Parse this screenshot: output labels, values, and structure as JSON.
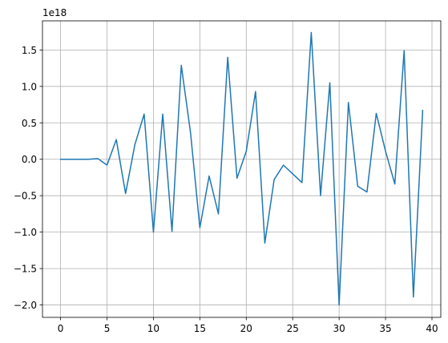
{
  "chart_data": {
    "type": "line",
    "title": "",
    "xlabel": "",
    "ylabel": "",
    "y_offset_label": "1e18",
    "xlim": [
      -1.95,
      40.95
    ],
    "ylim": [
      -2.17,
      1.9
    ],
    "xticks": [
      0,
      5,
      10,
      15,
      20,
      25,
      30,
      35,
      40
    ],
    "xtick_labels": [
      "0",
      "5",
      "10",
      "15",
      "20",
      "25",
      "30",
      "35",
      "40"
    ],
    "yticks": [
      -2.0,
      -1.5,
      -1.0,
      -0.5,
      0.0,
      0.5,
      1.0,
      1.5
    ],
    "ytick_labels": [
      "−2.0",
      "−1.5",
      "−1.0",
      "−0.5",
      "0.0",
      "0.5",
      "1.0",
      "1.5"
    ],
    "grid": true,
    "legend": "none",
    "x": [
      0,
      1,
      2,
      3,
      4,
      5,
      6,
      7,
      8,
      9,
      10,
      11,
      12,
      13,
      14,
      15,
      16,
      17,
      18,
      19,
      20,
      21,
      22,
      23,
      24,
      25,
      26,
      27,
      28,
      29,
      30,
      31,
      32,
      33,
      34,
      35,
      36,
      37,
      38,
      39
    ],
    "series": [
      {
        "color": "#1f77b4",
        "values": [
          0.0,
          0.0,
          0.0,
          0.0,
          0.01,
          -0.08,
          0.27,
          -0.47,
          0.2,
          0.62,
          -1.0,
          0.62,
          -0.99,
          1.29,
          0.36,
          -0.94,
          -0.23,
          -0.75,
          1.4,
          -0.26,
          0.11,
          0.93,
          -1.15,
          -0.28,
          -0.08,
          -0.2,
          -0.32,
          1.74,
          -0.5,
          1.05,
          -2.0,
          0.78,
          -0.37,
          -0.45,
          0.63,
          0.11,
          -0.34,
          1.49,
          -1.89,
          0.67
        ]
      }
    ]
  }
}
